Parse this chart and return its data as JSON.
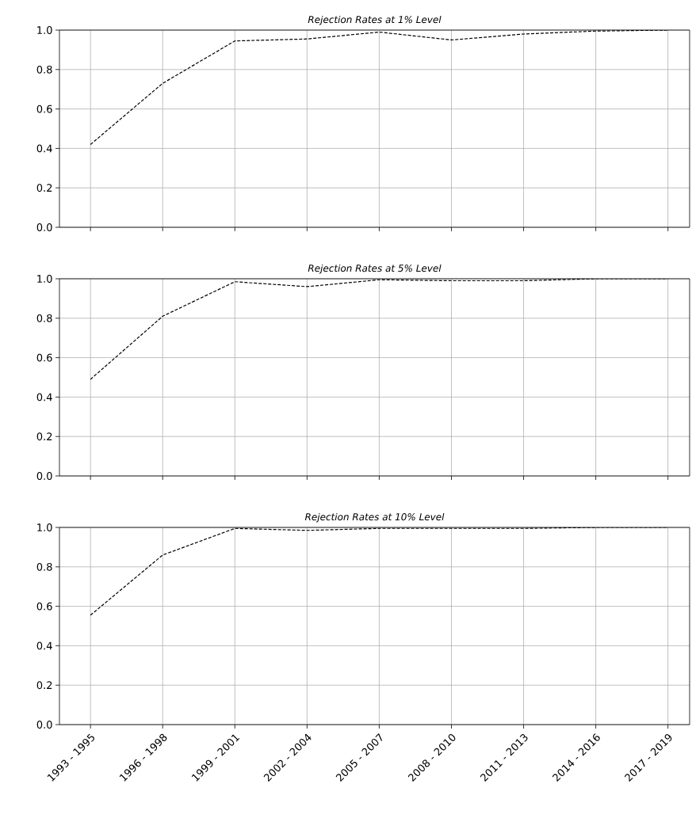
{
  "chart_data": [
    {
      "type": "line",
      "title": "Rejection Rates at 1% Level",
      "categories": [
        null,
        null,
        null,
        null,
        null,
        null,
        null,
        null,
        null
      ],
      "values": [
        0.42,
        0.73,
        0.945,
        0.955,
        0.99,
        0.95,
        0.98,
        0.995,
        1.0
      ],
      "color": "#000000",
      "ylim": [
        0,
        1
      ],
      "yticks": [
        {
          "value": 0,
          "label": "0.0"
        },
        {
          "value": 0.2,
          "label": "0.2"
        },
        {
          "value": 0.4,
          "label": "0.4"
        },
        {
          "value": 0.6,
          "label": "0.6"
        },
        {
          "value": 0.8,
          "label": "0.8"
        },
        {
          "value": 1,
          "label": "1.0"
        }
      ],
      "grid": true,
      "line_style": "dashed",
      "tick_labels": "y"
    },
    {
      "type": "line",
      "title": "Rejection Rates at 5% Level",
      "categories": [
        null,
        null,
        null,
        null,
        null,
        null,
        null,
        null,
        null
      ],
      "values": [
        0.49,
        0.81,
        0.985,
        0.96,
        0.995,
        0.99,
        0.99,
        1.0,
        1.0
      ],
      "color": "#000000",
      "ylim": [
        0,
        1
      ],
      "yticks": [
        {
          "value": 0,
          "label": "0.0"
        },
        {
          "value": 0.2,
          "label": "0.2"
        },
        {
          "value": 0.4,
          "label": "0.4"
        },
        {
          "value": 0.6,
          "label": "0.6"
        },
        {
          "value": 0.8,
          "label": "0.8"
        },
        {
          "value": 1,
          "label": "1.0"
        }
      ],
      "grid": true,
      "line_style": "dashed",
      "tick_labels": "y"
    },
    {
      "type": "line",
      "title": "Rejection Rates at 10% Level",
      "categories": [
        "1993 - 1995",
        "1996 - 1998",
        "1999 - 2001",
        "2002 - 2004",
        "2005 - 2007",
        "2008 - 2010",
        "2011 - 2013",
        "2014 - 2016",
        "2017 - 2019"
      ],
      "values": [
        0.555,
        0.86,
        0.995,
        0.985,
        0.995,
        0.995,
        0.995,
        1.0,
        1.0
      ],
      "color": "#000000",
      "ylim": [
        0,
        1
      ],
      "yticks": [
        {
          "value": 0,
          "label": "0.0"
        },
        {
          "value": 0.2,
          "label": "0.2"
        },
        {
          "value": 0.4,
          "label": "0.4"
        },
        {
          "value": 0.6,
          "label": "0.6"
        },
        {
          "value": 0.8,
          "label": "0.8"
        },
        {
          "value": 1,
          "label": "1.0"
        }
      ],
      "grid": true,
      "line_style": "dashed"
    }
  ]
}
